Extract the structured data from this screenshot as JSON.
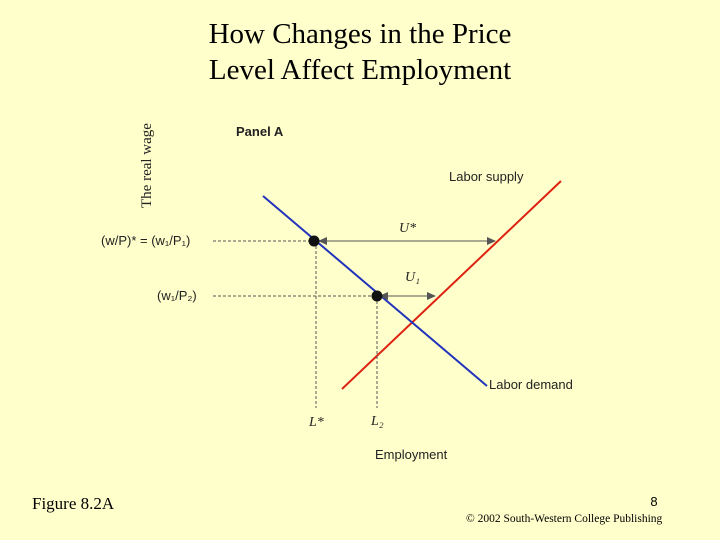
{
  "slide": {
    "title_line1": "How Changes in the Price",
    "title_line2": "Level Affect Employment",
    "figure_label": "Figure 8.2A",
    "page_number": "8",
    "copyright": "© 2002 South-Western College Publishing"
  },
  "diagram": {
    "panel_label": "Panel A",
    "y_axis_label": "The real wage",
    "x_axis_label": "Employment",
    "labor_supply_label": "Labor supply",
    "labor_demand_label": "Labor demand",
    "wage_high_label": "(w/P)* = (w₁/P₁)",
    "wage_low_label": "(w₁/P₂)",
    "unemployment_high_label": "U*",
    "unemployment_low_label": "U₁",
    "employment_high_label": "L*",
    "employment_low_label": "L₂",
    "colors": {
      "supply": "#dd2211",
      "demand": "#2233bb",
      "guide": "#555555",
      "text": "#222222"
    }
  }
}
